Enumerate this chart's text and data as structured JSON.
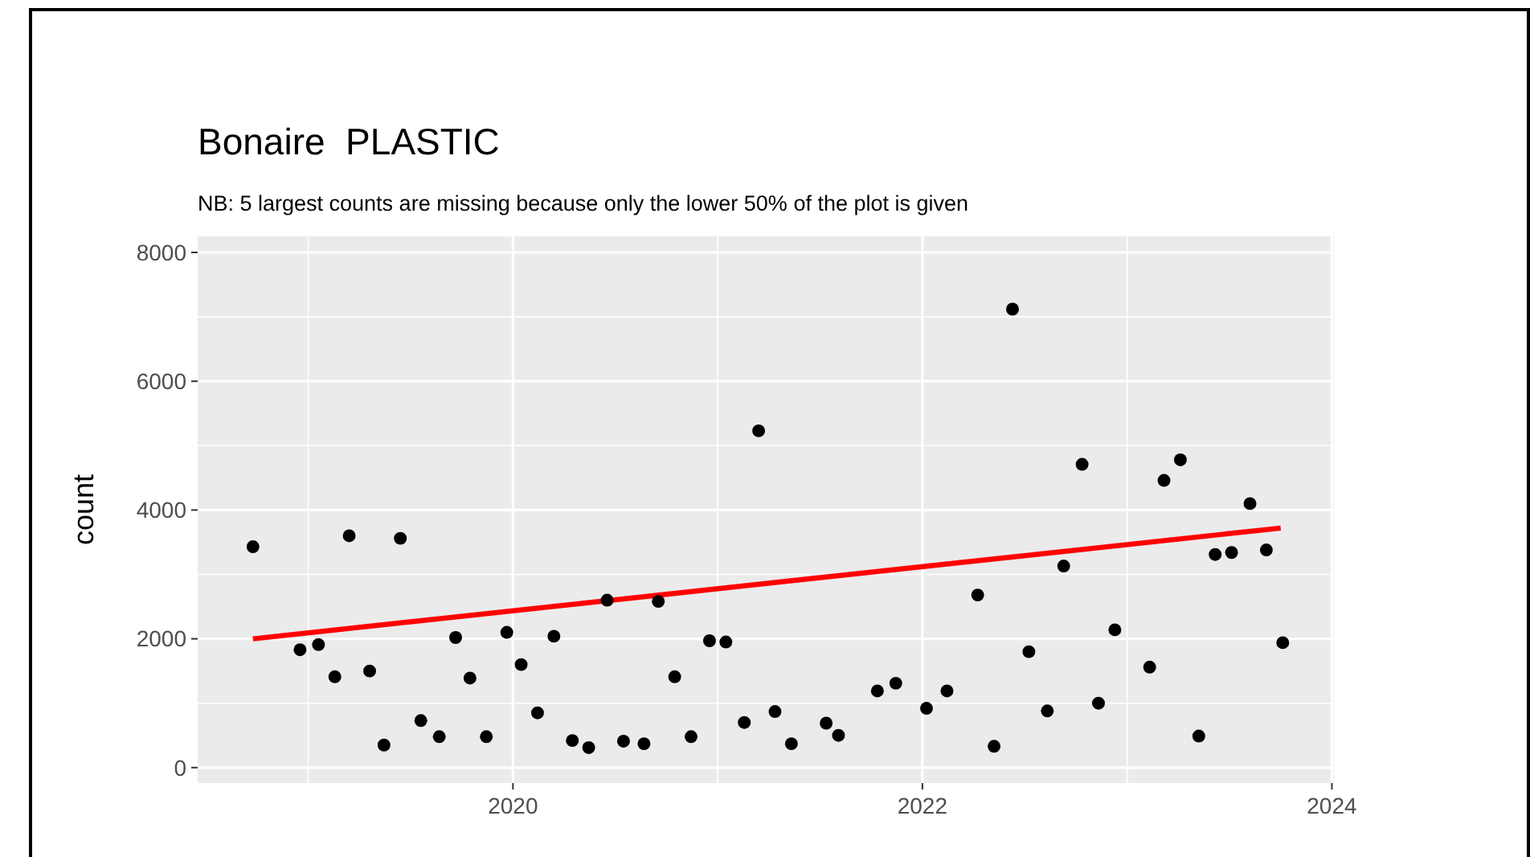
{
  "chart_data": {
    "type": "scatter",
    "title": "Bonaire  PLASTIC",
    "subtitle": "NB: 5 largest counts are missing because only the lower 50% of the plot is given",
    "ylabel": "count",
    "xlim": [
      2018.46,
      2024.01
    ],
    "xticks": [
      2020,
      2022,
      2024
    ],
    "ylim": [
      -240,
      8250
    ],
    "yticks": [
      0,
      2000,
      4000,
      6000,
      8000
    ],
    "grid": true,
    "marker": "circle",
    "series": [
      {
        "color": "#000000",
        "x": [
          2018.73,
          2018.96,
          2019.05,
          2019.13,
          2019.2,
          2019.3,
          2019.37,
          2019.45,
          2019.55,
          2019.64,
          2019.72,
          2019.79,
          2019.87,
          2019.97,
          2020.04,
          2020.12,
          2020.2,
          2020.29,
          2020.37,
          2020.46,
          2020.54,
          2020.64,
          2020.71,
          2020.79,
          2020.87,
          2020.96,
          2021.04,
          2021.13,
          2021.2,
          2021.28,
          2021.36,
          2021.53,
          2021.59,
          2021.78,
          2021.87,
          2022.02,
          2022.12,
          2022.27,
          2022.35,
          2022.44,
          2022.52,
          2022.61,
          2022.69,
          2022.78,
          2022.86,
          2022.94,
          2023.11,
          2023.18,
          2023.26,
          2023.35,
          2023.43,
          2023.51,
          2023.6,
          2023.68,
          2023.76
        ],
        "values": [
          3430,
          1830,
          1910,
          1410,
          3600,
          1500,
          350,
          3560,
          730,
          480,
          2020,
          1390,
          480,
          2100,
          1600,
          850,
          2040,
          420,
          310,
          2600,
          410,
          370,
          2580,
          1410,
          480,
          1970,
          1950,
          700,
          5230,
          870,
          370,
          690,
          500,
          1190,
          1310,
          920,
          1190,
          2680,
          330,
          7120,
          1800,
          880,
          3130,
          4710,
          1000,
          2140,
          1560,
          4460,
          4780,
          490,
          3310,
          3340,
          4100,
          3380,
          1940
        ]
      },
      {
        "type": "line",
        "marker": "none",
        "color": "#ff0000",
        "x": [
          2018.73,
          2023.75
        ],
        "values": [
          2000,
          3720
        ]
      }
    ]
  }
}
